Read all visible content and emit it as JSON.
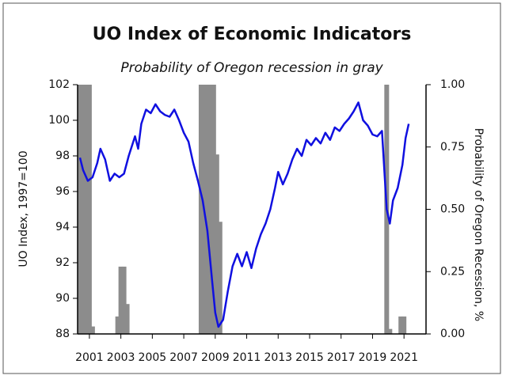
{
  "chart_data": {
    "type": "line",
    "title": "UO Index of Economic Indicators",
    "subtitle": "Probability of Oregon recession in gray",
    "y_label": "UO Index, 1997=100",
    "y2_label": "Probability of Oregon Recession, %",
    "xlim": [
      2000.25,
      2022.4
    ],
    "xticks": [
      2001,
      2003,
      2005,
      2007,
      2009,
      2011,
      2013,
      2015,
      2017,
      2019,
      2021
    ],
    "ylim": [
      88,
      102
    ],
    "yticks": [
      88,
      90,
      92,
      94,
      96,
      98,
      100,
      102
    ],
    "y2lim": [
      0,
      1
    ],
    "y2ticks": [
      {
        "value": 0,
        "label": "0.00"
      },
      {
        "value": 0.25,
        "label": "0.25"
      },
      {
        "value": 0.5,
        "label": "0.50"
      },
      {
        "value": 0.75,
        "label": "0.75"
      },
      {
        "value": 1,
        "label": "1.00"
      }
    ],
    "series": [
      {
        "type": "bar",
        "axis": "y2",
        "color": "#8c8c8c",
        "x": [
          2000.4,
          2000.6,
          2000.8,
          2001.0,
          2001.2,
          2002.8,
          2003.0,
          2003.2,
          2003.4,
          2008.1,
          2008.3,
          2008.5,
          2008.7,
          2008.9,
          2009.1,
          2009.3,
          2019.9,
          2020.1,
          2020.8,
          2021.0
        ],
        "values": [
          1,
          1,
          1,
          1,
          0.03,
          0.07,
          0.27,
          0.27,
          0.12,
          1,
          1,
          1,
          1,
          1,
          0.72,
          0.45,
          1,
          0.02,
          0.07,
          0.07
        ]
      },
      {
        "type": "line",
        "color": "#1010e0",
        "x": [
          2000.4,
          2000.6,
          2000.9,
          2001.2,
          2001.5,
          2001.7,
          2002.0,
          2002.3,
          2002.6,
          2002.9,
          2003.2,
          2003.5,
          2003.9,
          2004.1,
          2004.3,
          2004.6,
          2004.9,
          2005.2,
          2005.5,
          2005.8,
          2006.1,
          2006.4,
          2006.7,
          2007.0,
          2007.3,
          2007.6,
          2007.9,
          2008.2,
          2008.5,
          2008.8,
          2009.0,
          2009.2,
          2009.5,
          2009.8,
          2010.1,
          2010.4,
          2010.7,
          2011.0,
          2011.3,
          2011.6,
          2011.9,
          2012.2,
          2012.5,
          2012.8,
          2013.0,
          2013.3,
          2013.6,
          2013.9,
          2014.2,
          2014.5,
          2014.8,
          2015.1,
          2015.4,
          2015.7,
          2016.0,
          2016.3,
          2016.6,
          2016.9,
          2017.2,
          2017.5,
          2017.8,
          2018.1,
          2018.4,
          2018.7,
          2019.0,
          2019.3,
          2019.6,
          2019.9,
          2020.1,
          2020.3,
          2020.6,
          2020.9,
          2021.1,
          2021.3
        ],
        "values": [
          97.9,
          97.2,
          96.6,
          96.8,
          97.6,
          98.4,
          97.8,
          96.6,
          97.0,
          96.8,
          97.0,
          98.0,
          99.1,
          98.4,
          99.8,
          100.6,
          100.4,
          100.9,
          100.5,
          100.3,
          100.2,
          100.6,
          100.0,
          99.3,
          98.8,
          97.6,
          96.6,
          95.5,
          93.8,
          91.0,
          89.2,
          88.4,
          88.8,
          90.4,
          91.8,
          92.5,
          91.8,
          92.6,
          91.7,
          92.8,
          93.6,
          94.2,
          95.0,
          96.2,
          97.1,
          96.4,
          97.0,
          97.8,
          98.4,
          98.0,
          98.9,
          98.6,
          99.0,
          98.7,
          99.3,
          98.9,
          99.6,
          99.4,
          99.8,
          100.1,
          100.5,
          101.0,
          100.0,
          99.7,
          99.2,
          99.1,
          99.4,
          95.0,
          94.2,
          95.5,
          96.2,
          97.5,
          99.0,
          99.8
        ]
      }
    ]
  }
}
